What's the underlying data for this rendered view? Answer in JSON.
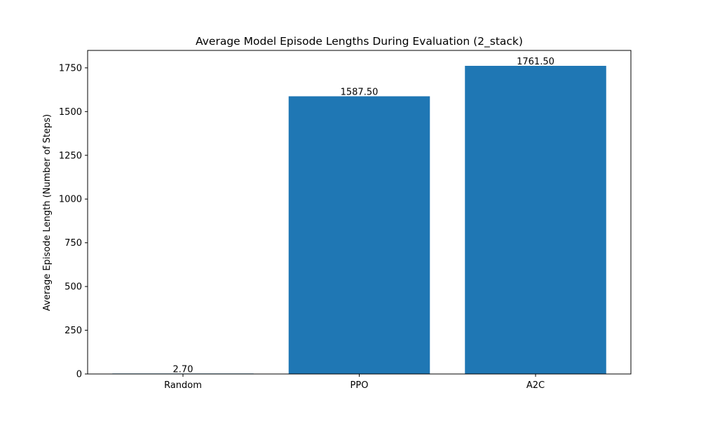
{
  "chart_data": {
    "type": "bar",
    "title": "Average Model Episode Lengths During Evaluation (2_stack)",
    "xlabel": "",
    "ylabel": "Average Episode Length (Number of Steps)",
    "categories": [
      "Random",
      "PPO",
      "A2C"
    ],
    "values": [
      2.7,
      1587.5,
      1761.5
    ],
    "value_labels": [
      "2.70",
      "1587.50",
      "1761.50"
    ],
    "ylim": [
      0,
      1849.6
    ],
    "yticks": [
      0,
      250,
      500,
      750,
      1000,
      1250,
      1500,
      1750
    ],
    "ytick_labels": [
      "0",
      "250",
      "500",
      "750",
      "1000",
      "1250",
      "1500",
      "1750"
    ],
    "bar_color": "#1f77b4",
    "grid": false,
    "legend": "none"
  }
}
